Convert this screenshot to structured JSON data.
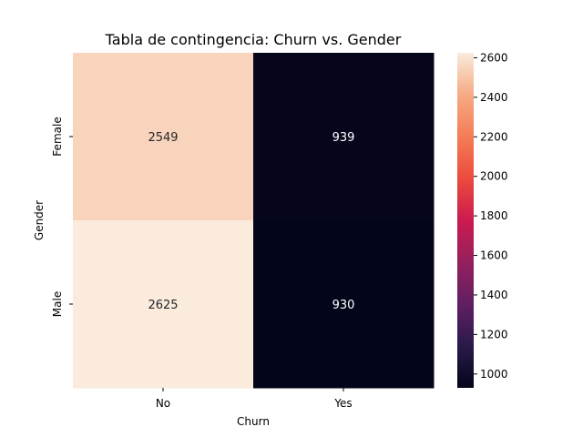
{
  "chart_data": {
    "type": "heatmap",
    "title": "Tabla de contingencia: Churn vs. Gender",
    "xlabel": "Churn",
    "ylabel": "Gender",
    "x_categories": [
      "No",
      "Yes"
    ],
    "y_categories": [
      "Female",
      "Male"
    ],
    "values": [
      [
        2549,
        939
      ],
      [
        2625,
        930
      ]
    ],
    "colorbar": {
      "min": 930,
      "max": 2625,
      "ticks": [
        1000,
        1200,
        1400,
        1600,
        1800,
        2000,
        2200,
        2400,
        2600
      ]
    },
    "colormap": "rocket",
    "grid": false,
    "legend": "none"
  }
}
